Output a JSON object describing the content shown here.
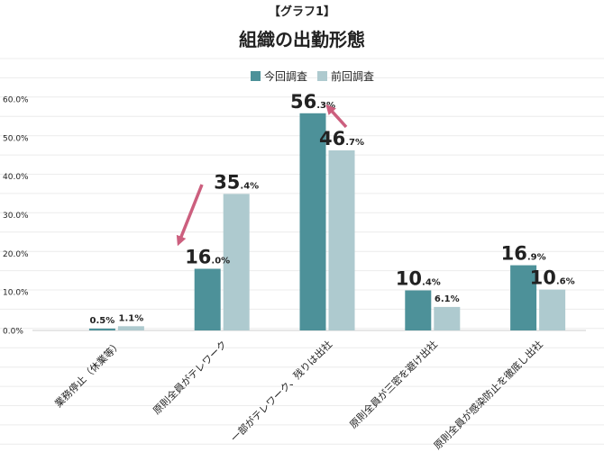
{
  "chart_data": {
    "type": "bar",
    "label": "【グラフ1】",
    "title": "組織の出勤形態",
    "categories": [
      "業務停止（休業等）",
      "原則全員がテレワーク",
      "一部がテレワーク、残りは出社",
      "原則全員が三密を避け出社",
      "原則全員が感染防止を徹底し出社"
    ],
    "series": [
      {
        "name": "今回調査",
        "color": "#4d9199",
        "values": [
          0.5,
          16.0,
          56.3,
          10.4,
          16.9
        ],
        "value_labels": [
          "0.5%",
          "16.0%",
          "56.3%",
          "10.4%",
          "16.9%"
        ]
      },
      {
        "name": "前回調査",
        "color": "#aecacf",
        "values": [
          1.1,
          35.4,
          46.7,
          6.1,
          10.6
        ],
        "value_labels": [
          "1.1%",
          "35.4%",
          "46.7%",
          "6.1%",
          "10.6%"
        ]
      }
    ],
    "yticks": [
      "0.0%",
      "10.0%",
      "20.0%",
      "30.0%",
      "40.0%",
      "50.0%",
      "60.0%"
    ],
    "ylim": [
      0,
      60
    ],
    "grid": true,
    "legend_position": "top",
    "annotation_color": "#cc5f7e"
  }
}
